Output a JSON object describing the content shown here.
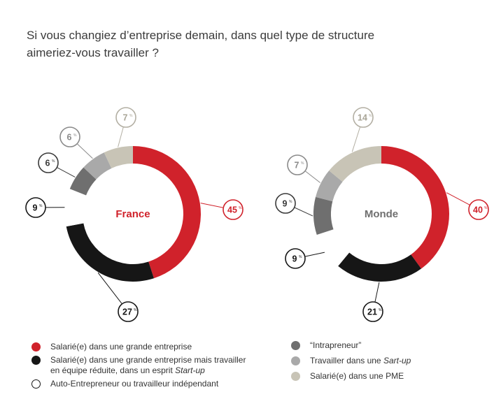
{
  "title_line1": "Si vous changiez d’entreprise demain, dans quel type de structure",
  "title_line2": "aimeriez-vous travailler ?",
  "colors": {
    "red": "#d0222b",
    "black": "#161616",
    "white": "#ffffff",
    "dark_gray": "#6f6f6f",
    "mid_gray": "#a9a9a9",
    "beige": "#c8c4b6"
  },
  "percent_sign": "%",
  "chart_data": [
    {
      "type": "donut",
      "title": "France",
      "slices": [
        {
          "key": "grande_entreprise",
          "value": 45,
          "label": "45"
        },
        {
          "key": "equipe_reduite",
          "value": 27,
          "label": "27"
        },
        {
          "key": "auto_entrepreneur",
          "value": 9,
          "label": "9"
        },
        {
          "key": "intrapreneur",
          "value": 6,
          "label": "6"
        },
        {
          "key": "startup",
          "value": 6,
          "label": "6"
        },
        {
          "key": "pme",
          "value": 7,
          "label": "7"
        }
      ]
    },
    {
      "type": "donut",
      "title": "Monde",
      "slices": [
        {
          "key": "grande_entreprise",
          "value": 40,
          "label": "40"
        },
        {
          "key": "equipe_reduite",
          "value": 21,
          "label": "21"
        },
        {
          "key": "auto_entrepreneur",
          "value": 9,
          "label": "9"
        },
        {
          "key": "intrapreneur",
          "value": 9,
          "label": "9"
        },
        {
          "key": "startup",
          "value": 7,
          "label": "7"
        },
        {
          "key": "pme",
          "value": 14,
          "label": "14"
        }
      ]
    }
  ],
  "legend": {
    "left": [
      {
        "key": "grande_entreprise",
        "color": "#d0222b",
        "text": "Salarié(e) dans une grande entreprise"
      },
      {
        "key": "equipe_reduite",
        "color": "#161616",
        "text_line1": "Salarié(e) dans une grande entreprise mais travailler",
        "text_line2_prefix": "en équipe réduite, dans un esprit ",
        "text_line2_italic": "Start-up"
      },
      {
        "key": "auto_entrepreneur",
        "color": "#ffffff",
        "text": "Auto-Entrepreneur ou travailleur indépendant"
      }
    ],
    "right": [
      {
        "key": "intrapreneur",
        "color": "#6f6f6f",
        "text": "“Intrapreneur”"
      },
      {
        "key": "startup",
        "color": "#a9a9a9",
        "text_prefix": "Travailler dans une ",
        "text_italic": "Sart-up"
      },
      {
        "key": "pme",
        "color": "#c8c4b6",
        "text": "Salarié(e) dans une PME"
      }
    ]
  }
}
